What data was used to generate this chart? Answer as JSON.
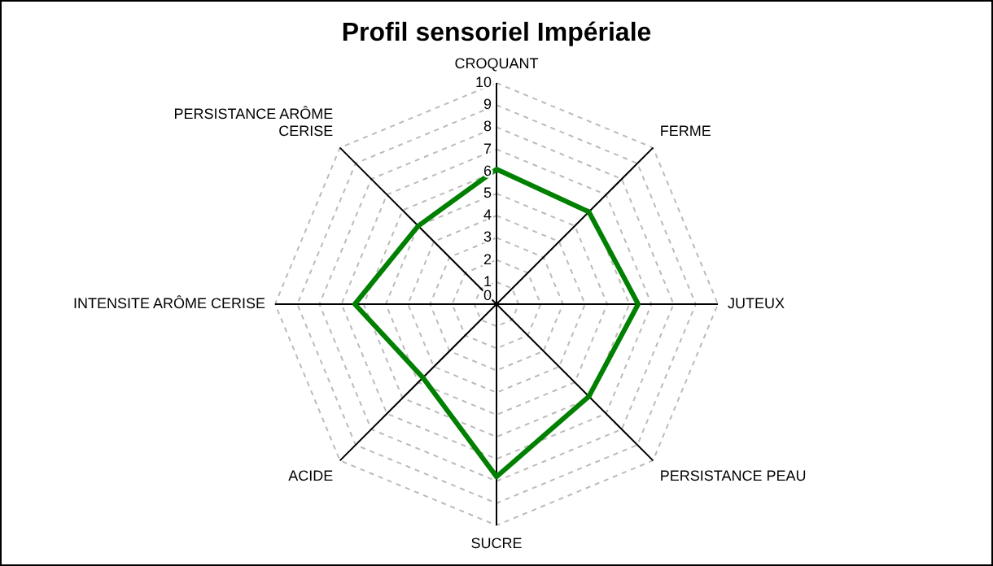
{
  "chart_data": {
    "type": "radar",
    "title": "Profil sensoriel Impériale",
    "categories": [
      "CROQUANT",
      "FERME",
      "JUTEUX",
      "PERSISTANCE PEAU",
      "SUCRE",
      "ACIDE",
      "INTENSITE ARÔME CERISE",
      "PERSISTANCE ARÔME CERISE"
    ],
    "series": [
      {
        "color": "#008000",
        "values": [
          6.1,
          5.9,
          6.4,
          5.9,
          7.8,
          4.7,
          6.4,
          5.0
        ]
      }
    ],
    "ylim": [
      0,
      10
    ],
    "yticks": [
      0,
      1,
      2,
      3,
      4,
      5,
      6,
      7,
      8,
      9,
      10
    ],
    "grid": true,
    "marker": "none",
    "legend": false
  }
}
